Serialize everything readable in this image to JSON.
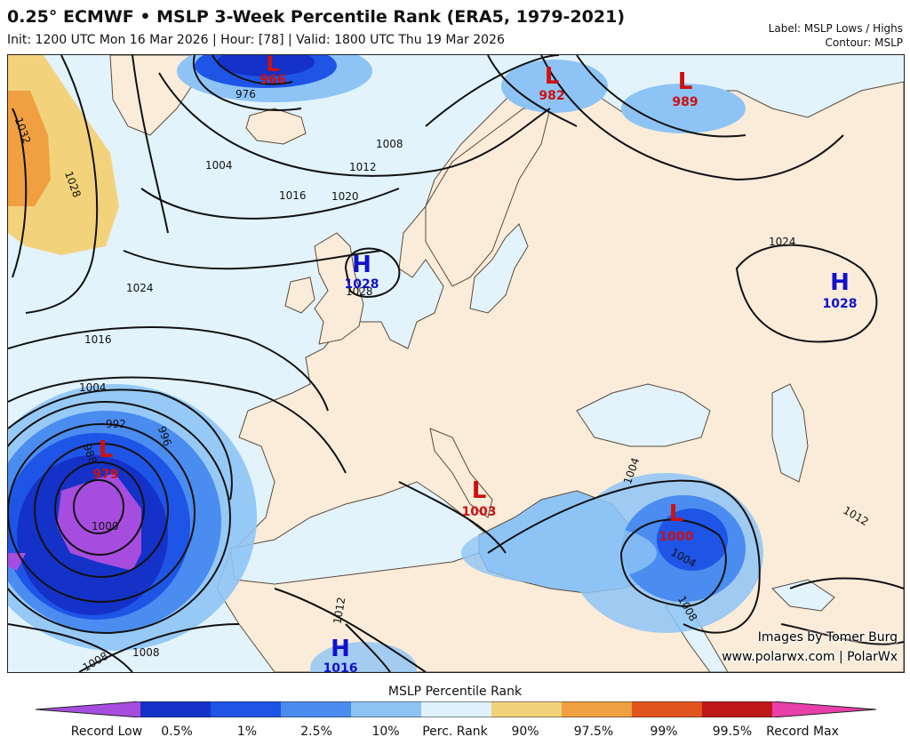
{
  "title": "0.25° ECMWF • MSLP 3-Week Percentile Rank (ERA5, 1979-2021)",
  "subtitle": "Init: 1200 UTC Mon 16 Mar 2026 | Hour: [78] | Valid: 1800 UTC Thu 19 Mar 2026",
  "label_line": "Label: MSLP Lows / Highs",
  "contour_line": "Contour: MSLP",
  "credit": {
    "line1": "Images by Tomer Burg",
    "line2": "www.polarwx.com | PolarWx"
  },
  "colorbar": {
    "title": "MSLP Percentile Rank",
    "ticks": [
      "Record Low",
      "0.5%",
      "1%",
      "2.5%",
      "10%",
      "Perc. Rank",
      "90%",
      "97.5%",
      "99%",
      "99.5%",
      "Record Max"
    ],
    "colors": [
      "#a64de0",
      "#1432c8",
      "#1f55e6",
      "#4a8cf0",
      "#8ec4f5",
      "#dff1fb",
      "#f3d27c",
      "#f0a040",
      "#e2541e",
      "#c01818",
      "#e83fa8"
    ]
  },
  "pressure_centers": [
    {
      "type": "L",
      "value": "966",
      "color": "#cc1111"
    },
    {
      "type": "L",
      "value": "982",
      "color": "#cc1111"
    },
    {
      "type": "L",
      "value": "989",
      "color": "#cc1111"
    },
    {
      "type": "H",
      "value": "1028",
      "color": "#1111cc"
    },
    {
      "type": "H",
      "value": "1028",
      "color": "#1111cc"
    },
    {
      "type": "L",
      "value": "979",
      "color": "#cc1111"
    },
    {
      "type": "L",
      "value": "1003",
      "color": "#cc1111"
    },
    {
      "type": "L",
      "value": "1000",
      "color": "#cc1111"
    },
    {
      "type": "H",
      "value": "1016",
      "color": "#1111cc"
    }
  ],
  "isobar_labels": [
    "1032",
    "1028",
    "976",
    "1004",
    "1008",
    "1012",
    "1016",
    "1020",
    "1024",
    "1016",
    "1004",
    "992",
    "988",
    "996",
    "1000",
    "1024",
    "1004",
    "1004",
    "1008",
    "1012",
    "1012",
    "1008",
    "1008",
    "1028"
  ],
  "map_colors": {
    "land": "#faecd9",
    "ocean_normal": "#e2f3fb",
    "border": "#8a6a4a"
  }
}
